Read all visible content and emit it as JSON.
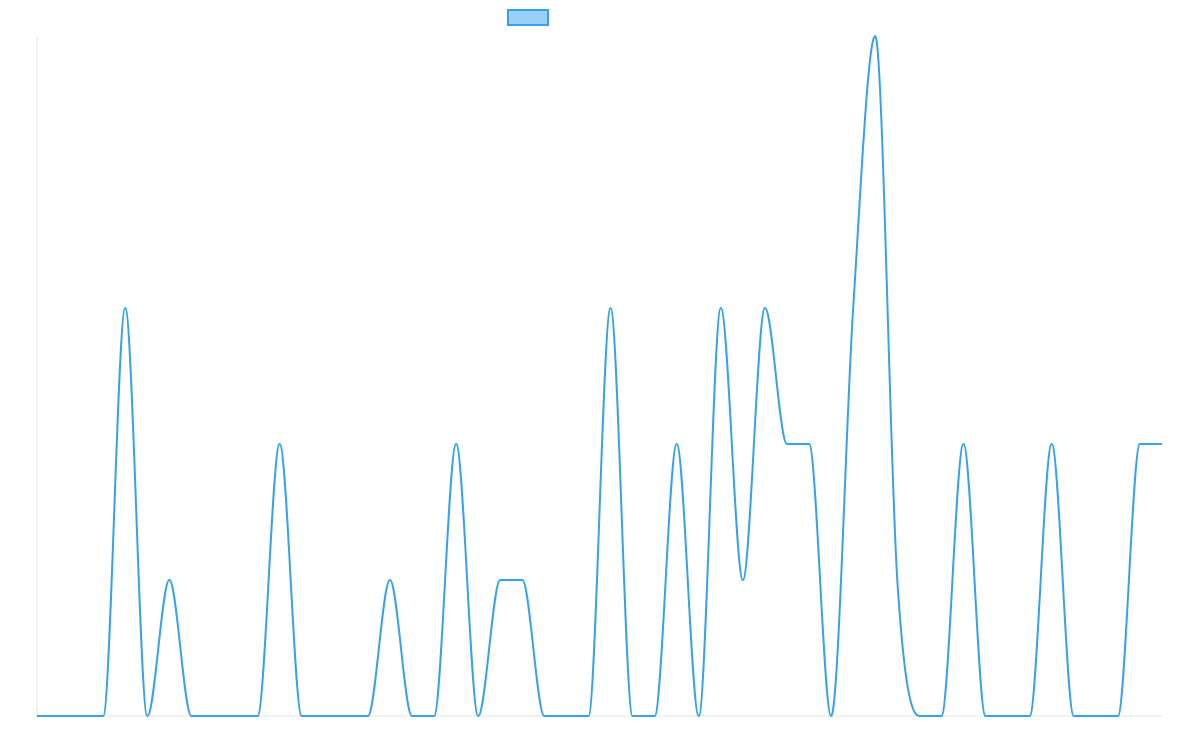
{
  "chart_data": {
    "type": "line",
    "categories": [
      null,
      null,
      null,
      null,
      null,
      null,
      null,
      null,
      null,
      null,
      null,
      null,
      null,
      null,
      null,
      null,
      null,
      null,
      null,
      null,
      null,
      null,
      null,
      null,
      null,
      null,
      null,
      null,
      null,
      null,
      null,
      null,
      null,
      null,
      null,
      null,
      null,
      null,
      null,
      null,
      null,
      null,
      null,
      null,
      null,
      null,
      null,
      null,
      null,
      null,
      null,
      null
    ],
    "series": [
      {
        "color": "#36a2eb",
        "values": [
          0,
          0,
          0,
          0,
          3,
          0,
          1,
          0,
          0,
          0,
          0,
          2,
          0,
          0,
          0,
          0,
          1,
          0,
          0,
          2,
          0,
          1,
          1,
          0,
          0,
          0,
          3,
          0,
          0,
          2,
          0,
          3,
          1,
          3,
          2,
          2,
          0,
          3,
          5,
          1,
          0,
          0,
          2,
          0,
          0,
          0,
          2,
          0,
          0,
          0,
          2,
          2
        ]
      }
    ],
    "ylim": [
      0,
      5
    ],
    "grid": false,
    "legend": "top"
  }
}
